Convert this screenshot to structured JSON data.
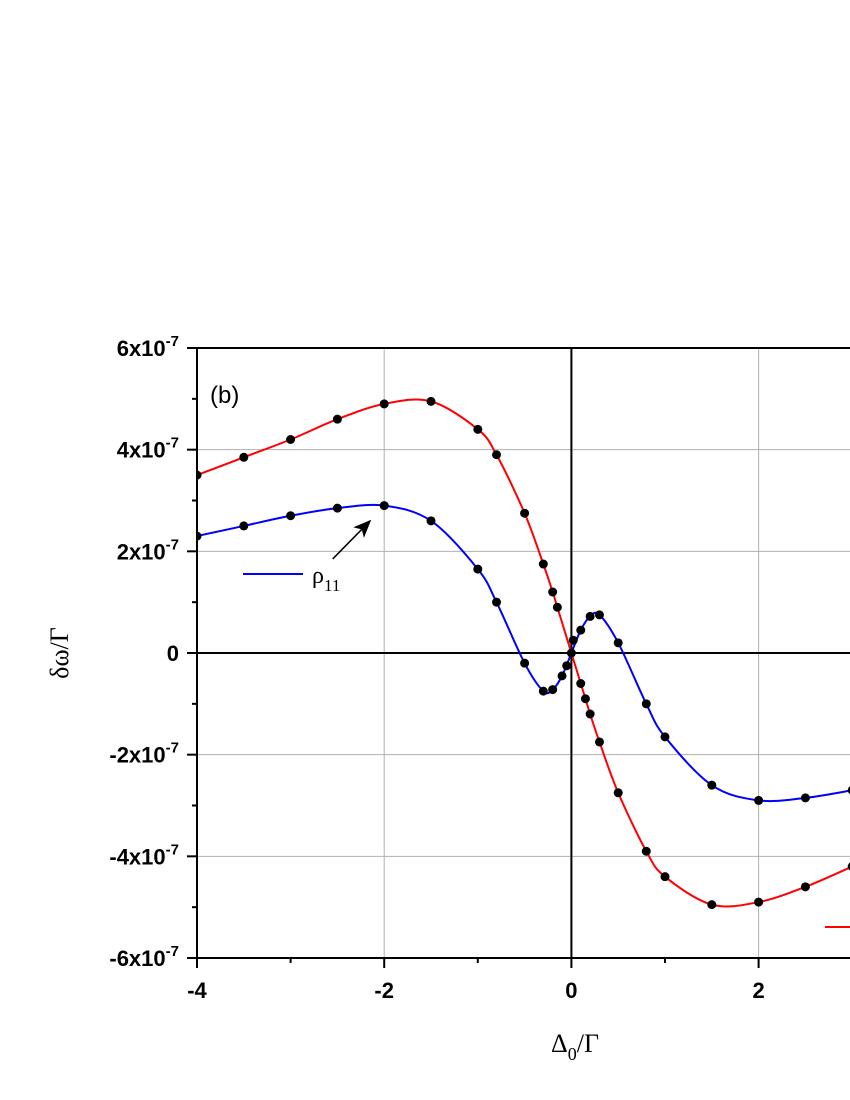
{
  "chart_data": {
    "type": "line",
    "panel_label": "(b)",
    "xlabel": {
      "main": "Δ",
      "sub": "0",
      "tail": "/Γ"
    },
    "ylabel": "δω/Γ",
    "xlim": [
      -4,
      3
    ],
    "ylim": [
      -6e-07,
      6e-07
    ],
    "grid": true,
    "x_ticks": [
      {
        "value": -4,
        "label": "-4"
      },
      {
        "value": -2,
        "label": "-2"
      },
      {
        "value": 0,
        "label": "0"
      },
      {
        "value": 2,
        "label": "2"
      }
    ],
    "y_ticks": [
      {
        "value": 6e-07,
        "label": "6x10",
        "exp": "-7"
      },
      {
        "value": 4e-07,
        "label": "4x10",
        "exp": "-7"
      },
      {
        "value": 2e-07,
        "label": "2x10",
        "exp": "-7"
      },
      {
        "value": 0,
        "label": "0",
        "exp": ""
      },
      {
        "value": -2e-07,
        "label": "-2x10",
        "exp": "-7"
      },
      {
        "value": -4e-07,
        "label": "-4x10",
        "exp": "-7"
      },
      {
        "value": -6e-07,
        "label": "-6x10",
        "exp": "-7"
      }
    ],
    "series": [
      {
        "name": "ρ11",
        "label_main": "ρ",
        "label_sub": "11",
        "color": "#0000ff",
        "x": [
          -4,
          -3.5,
          -3,
          -2.5,
          -2,
          -1.5,
          -1,
          -0.8,
          -0.5,
          -0.3,
          -0.2,
          -0.1,
          0,
          0.1,
          0.2,
          0.3,
          0.5,
          0.8,
          1,
          1.5,
          2,
          2.5,
          3
        ],
        "y": [
          2.3e-07,
          2.5e-07,
          2.7e-07,
          2.85e-07,
          2.9e-07,
          2.6e-07,
          1.65e-07,
          1e-07,
          -2e-08,
          -7.5e-08,
          -7.2e-08,
          -4.5e-08,
          0,
          4.5e-08,
          7.2e-08,
          7.5e-08,
          2e-08,
          -1e-07,
          -1.65e-07,
          -2.6e-07,
          -2.9e-07,
          -2.85e-07,
          -2.7e-07
        ]
      },
      {
        "color": "#ff0000",
        "x": [
          -4,
          -3.5,
          -3,
          -2.5,
          -2,
          -1.5,
          -1,
          -0.8,
          -0.5,
          -0.3,
          -0.2,
          -0.15,
          -0.1,
          0,
          0.1,
          0.15,
          0.2,
          0.3,
          0.5,
          0.8,
          1,
          1.5,
          2,
          2.5,
          3
        ],
        "y": [
          3.5e-07,
          3.85e-07,
          4.2e-07,
          4.6e-07,
          4.9e-07,
          4.95e-07,
          4.4e-07,
          3.9e-07,
          2.75e-07,
          1.75e-07,
          1.2e-07,
          9e-08,
          6e-08,
          0,
          -6e-08,
          -9e-08,
          -1.2e-07,
          -1.75e-07,
          -2.75e-07,
          -3.9e-07,
          -4.4e-07,
          -4.95e-07,
          -4.9e-07,
          -4.6e-07,
          -4.2e-07
        ]
      }
    ],
    "markers": [
      {
        "x": -4,
        "y": 2.3e-07
      },
      {
        "x": -3.5,
        "y": 2.5e-07
      },
      {
        "x": -3,
        "y": 2.7e-07
      },
      {
        "x": -2.5,
        "y": 2.85e-07
      },
      {
        "x": -2,
        "y": 2.9e-07
      },
      {
        "x": -1.5,
        "y": 2.6e-07
      },
      {
        "x": -1,
        "y": 1.65e-07
      },
      {
        "x": -0.8,
        "y": 1e-07
      },
      {
        "x": -0.5,
        "y": -2e-08
      },
      {
        "x": -0.3,
        "y": -7.5e-08
      },
      {
        "x": -0.2,
        "y": -7.2e-08
      },
      {
        "x": -0.1,
        "y": -4.5e-08
      },
      {
        "x": 0,
        "y": 0
      },
      {
        "x": 0.1,
        "y": 4.5e-08
      },
      {
        "x": 0.2,
        "y": 7.2e-08
      },
      {
        "x": 0.3,
        "y": 7.5e-08
      },
      {
        "x": 0.5,
        "y": 2e-08
      },
      {
        "x": 0.8,
        "y": -1e-07
      },
      {
        "x": 1,
        "y": -1.65e-07
      },
      {
        "x": 1.5,
        "y": -2.6e-07
      },
      {
        "x": 2,
        "y": -2.9e-07
      },
      {
        "x": 2.5,
        "y": -2.85e-07
      },
      {
        "x": 3,
        "y": -2.7e-07
      },
      {
        "x": -4,
        "y": 3.5e-07
      },
      {
        "x": -3.5,
        "y": 3.85e-07
      },
      {
        "x": -3,
        "y": 4.2e-07
      },
      {
        "x": -2.5,
        "y": 4.6e-07
      },
      {
        "x": -2,
        "y": 4.9e-07
      },
      {
        "x": -1.5,
        "y": 4.95e-07
      },
      {
        "x": -1,
        "y": 4.4e-07
      },
      {
        "x": -0.8,
        "y": 3.9e-07
      },
      {
        "x": -0.5,
        "y": 2.75e-07
      },
      {
        "x": -0.3,
        "y": 1.75e-07
      },
      {
        "x": -0.2,
        "y": 1.2e-07
      },
      {
        "x": -0.15,
        "y": 9e-08
      },
      {
        "x": -0.05,
        "y": -2.5e-08
      },
      {
        "x": 0.02,
        "y": 2.5e-08
      },
      {
        "x": 0.1,
        "y": -6e-08
      },
      {
        "x": 0.15,
        "y": -9e-08
      },
      {
        "x": 0.2,
        "y": -1.2e-07
      },
      {
        "x": 0.3,
        "y": -1.75e-07
      },
      {
        "x": 0.5,
        "y": -2.75e-07
      },
      {
        "x": 0.8,
        "y": -3.9e-07
      },
      {
        "x": 1,
        "y": -4.4e-07
      },
      {
        "x": 1.5,
        "y": -4.95e-07
      },
      {
        "x": 2,
        "y": -4.9e-07
      },
      {
        "x": 2.5,
        "y": -4.6e-07
      },
      {
        "x": 3,
        "y": -4.2e-07
      }
    ],
    "annotation": {
      "arrow_from": {
        "x": -2.55,
        "y": 1.85e-07
      },
      "arrow_to": {
        "x": -2.15,
        "y": 2.6e-07
      }
    }
  }
}
